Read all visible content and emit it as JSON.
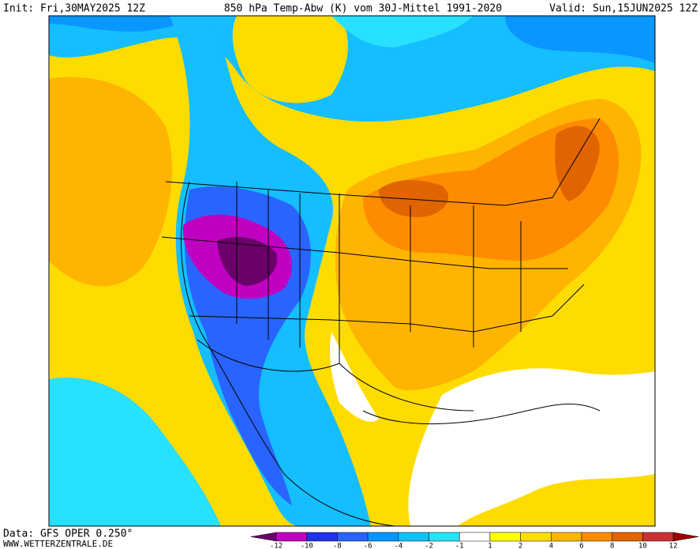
{
  "header": {
    "init": "Init: Fri,30MAY2025 12Z",
    "title": "850 hPa Temp-Abw (K) vom 30J-Mittel 1991-2020",
    "valid": "Valid: Sun,15JUN2025 12Z"
  },
  "footer": {
    "data": "Data: GFS OPER 0.250°",
    "site": "WWW.WETTERZENTRALE.DE"
  },
  "colorbar": {
    "ticks": [
      -12,
      -10,
      -8,
      -6,
      -4,
      -2,
      -1,
      1,
      2,
      4,
      6,
      8,
      10,
      12
    ],
    "colors": [
      "#6a006a",
      "#c000c0",
      "#1e32e6",
      "#2a64ff",
      "#0a96ff",
      "#14beff",
      "#28e0ff",
      "#ffffff",
      "#ffff00",
      "#ffdc00",
      "#ffb400",
      "#ff8c00",
      "#e06400",
      "#c83232",
      "#a00000"
    ]
  }
}
